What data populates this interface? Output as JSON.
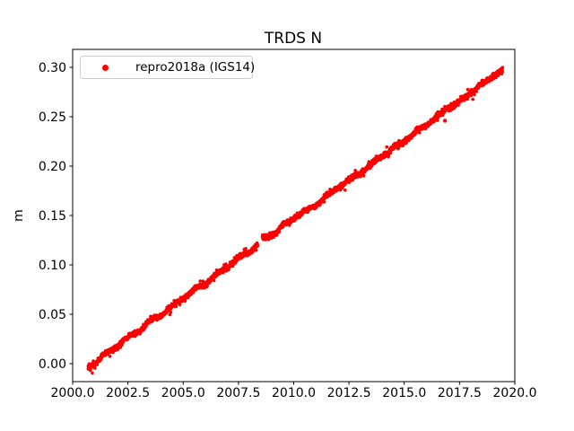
{
  "chart_data": {
    "type": "scatter",
    "title": "TRDS N",
    "xlabel": "",
    "ylabel": "m",
    "xlim": [
      2000.0,
      2020.0
    ],
    "ylim": [
      -0.0182,
      0.3182
    ],
    "grid": false,
    "background": "#ffffff",
    "axes_color": "#000000",
    "xticks": {
      "values": [
        2000.0,
        2002.5,
        2005.0,
        2007.5,
        2010.0,
        2012.5,
        2015.0,
        2017.5,
        2020.0
      ],
      "labels": [
        "2000.0",
        "2002.5",
        "2005.0",
        "2007.5",
        "2010.0",
        "2012.5",
        "2015.0",
        "2017.5",
        "2020.0"
      ]
    },
    "yticks": {
      "values": [
        0.0,
        0.05,
        0.1,
        0.15,
        0.2,
        0.25,
        0.3
      ],
      "labels": [
        "0.00",
        "0.05",
        "0.10",
        "0.15",
        "0.20",
        "0.25",
        "0.30"
      ]
    },
    "legend": {
      "position": "upper left",
      "entries": [
        {
          "label": "repro2018a (IGS14)",
          "marker": "dot",
          "color": "#ff0000"
        }
      ]
    },
    "series": [
      {
        "name": "repro2018a (IGS14)",
        "color": "#ff0000",
        "marker": "point",
        "marker_radius_px": 1.8,
        "x_start": 2000.7,
        "x_end": 2019.45,
        "points_per_year": 160,
        "noise_sigma": 0.0013,
        "seasonal_amplitude": 0.0009,
        "seed": 20180214,
        "gaps": [
          [
            2008.38,
            2008.58
          ]
        ],
        "anchors": [
          [
            2000.7,
            -0.004
          ],
          [
            2001.0,
            0.0
          ],
          [
            2001.35,
            0.009
          ],
          [
            2001.6,
            0.011
          ],
          [
            2002.0,
            0.017
          ],
          [
            2002.35,
            0.025
          ],
          [
            2002.7,
            0.029
          ],
          [
            2003.0,
            0.033
          ],
          [
            2003.5,
            0.043
          ],
          [
            2004.0,
            0.049
          ],
          [
            2004.5,
            0.058
          ],
          [
            2005.0,
            0.066
          ],
          [
            2005.5,
            0.075
          ],
          [
            2006.0,
            0.081
          ],
          [
            2006.5,
            0.09
          ],
          [
            2007.0,
            0.098
          ],
          [
            2007.5,
            0.107
          ],
          [
            2008.0,
            0.113
          ],
          [
            2008.38,
            0.12
          ],
          [
            2008.58,
            0.1275
          ],
          [
            2008.9,
            0.129
          ],
          [
            2009.2,
            0.133
          ],
          [
            2009.5,
            0.14
          ],
          [
            2009.75,
            0.143
          ],
          [
            2010.0,
            0.147
          ],
          [
            2010.3,
            0.152
          ],
          [
            2010.6,
            0.155
          ],
          [
            2011.0,
            0.161
          ],
          [
            2011.5,
            0.17
          ],
          [
            2012.0,
            0.178
          ],
          [
            2012.5,
            0.186
          ],
          [
            2013.0,
            0.193
          ],
          [
            2013.4,
            0.2
          ],
          [
            2014.0,
            0.21
          ],
          [
            2014.5,
            0.218
          ],
          [
            2015.0,
            0.226
          ],
          [
            2015.5,
            0.234
          ],
          [
            2016.0,
            0.242
          ],
          [
            2016.5,
            0.25
          ],
          [
            2016.9,
            0.258
          ],
          [
            2017.2,
            0.261
          ],
          [
            2017.5,
            0.265
          ],
          [
            2018.0,
            0.274
          ],
          [
            2018.35,
            0.281
          ],
          [
            2018.7,
            0.285
          ],
          [
            2019.0,
            0.291
          ],
          [
            2019.2,
            0.294
          ],
          [
            2019.45,
            0.297
          ]
        ],
        "outliers": [
          [
            2016.84,
            0.246
          ]
        ]
      }
    ]
  }
}
